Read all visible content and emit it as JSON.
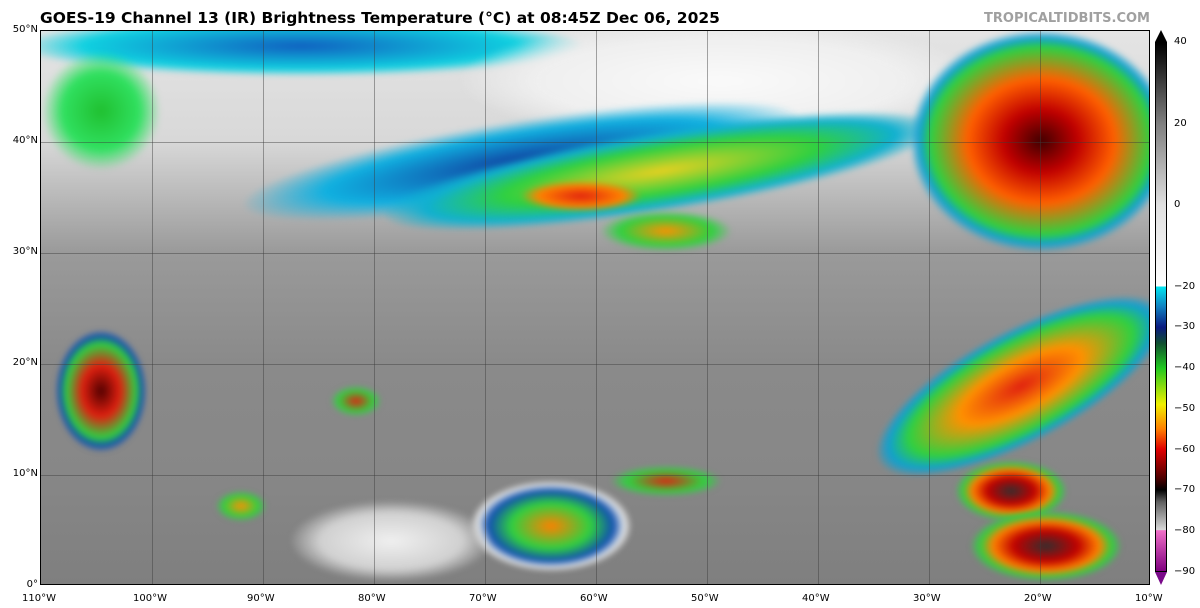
{
  "header": {
    "title": "GOES-19 Channel 13 (IR) Brightness Temperature (°C) at 08:45Z Dec 06, 2025",
    "brand": "TROPICALTIDBITS.COM"
  },
  "map": {
    "lat_labels": [
      "50°N",
      "40°N",
      "30°N",
      "20°N",
      "10°N",
      "0°"
    ],
    "lon_labels": [
      "110°W",
      "100°W",
      "90°W",
      "80°W",
      "70°W",
      "60°W",
      "50°W",
      "40°W",
      "30°W",
      "20°W",
      "10°W"
    ],
    "extent": {
      "lon": [
        -110,
        -10
      ],
      "lat": [
        0,
        50
      ]
    }
  },
  "colorbar": {
    "labels": [
      "40",
      "20",
      "0",
      "−20",
      "−30",
      "−40",
      "−50",
      "−60",
      "−70",
      "−80",
      "−90"
    ],
    "values": [
      40,
      20,
      0,
      -20,
      -30,
      -40,
      -50,
      -60,
      -70,
      -80,
      -90
    ],
    "colors": {
      "warm": "#000000",
      "neutral": "#e0e0e0",
      "cold_start": "#00e5f0",
      "navy": "#0a1a80",
      "green": "#20c820",
      "yellow": "#f0f000",
      "orange": "#ff8000",
      "red": "#e00000",
      "black": "#000000",
      "pink": "#f070c8",
      "purple": "#800080"
    }
  }
}
